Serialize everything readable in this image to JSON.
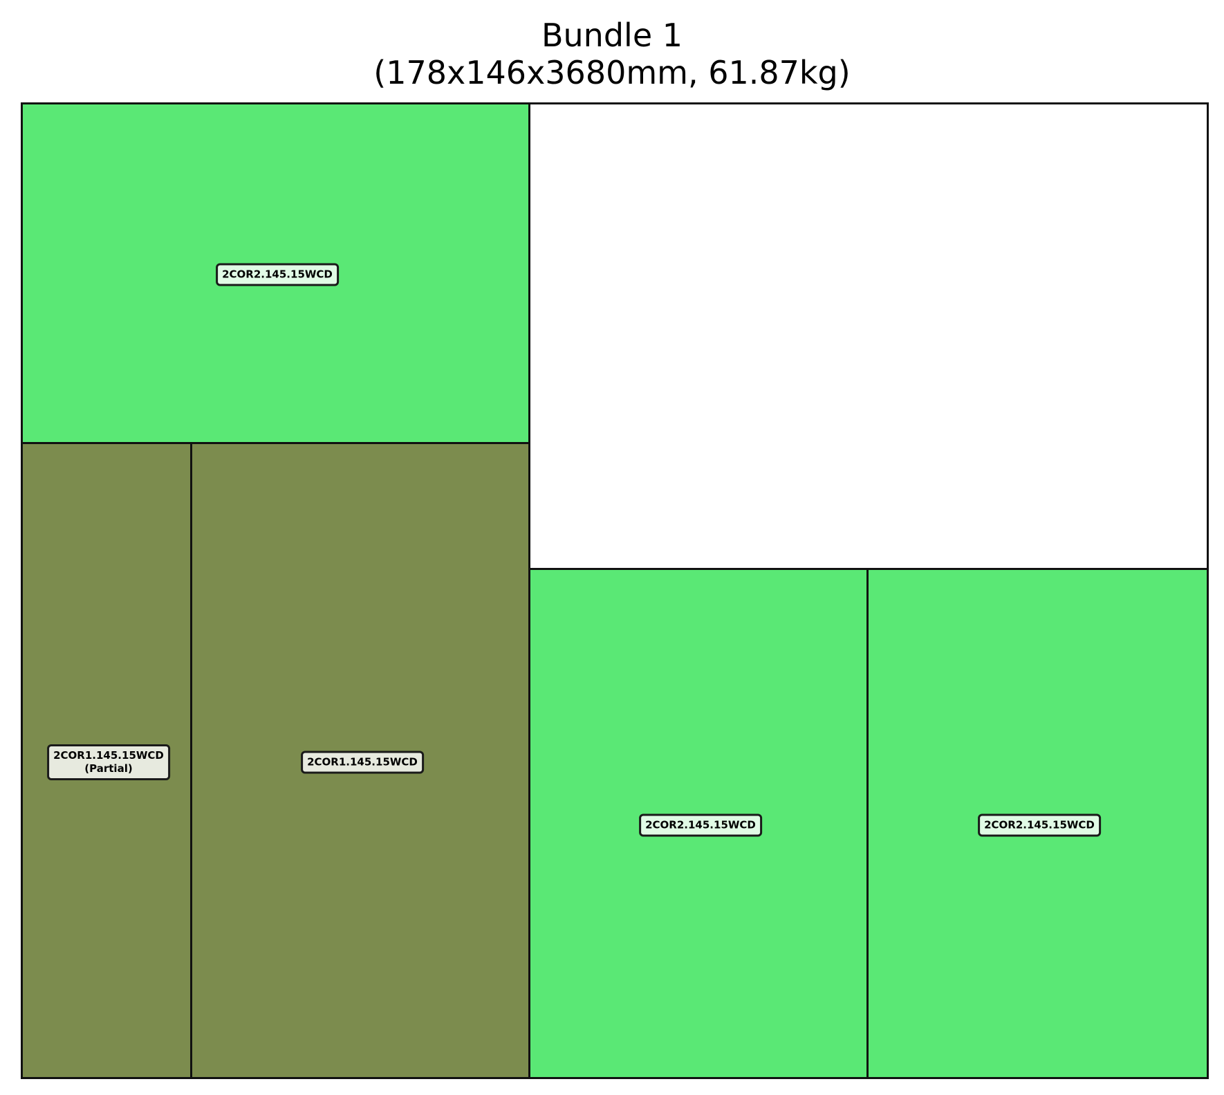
{
  "title": {
    "line1": "Bundle 1",
    "line2": "(178x146x3680mm, 61.87kg)"
  },
  "colors": {
    "light_green": "#5ae875",
    "olive": "#7c8c4e",
    "empty": "#ffffff"
  },
  "pieces": [
    {
      "label": "2COR2.145.15WCD",
      "note": ""
    },
    {
      "label": "2COR1.145.15WCD",
      "note": "(Partial)"
    },
    {
      "label": "2COR1.145.15WCD",
      "note": ""
    },
    {
      "label": "2COR2.145.15WCD",
      "note": ""
    },
    {
      "label": "2COR2.145.15WCD",
      "note": ""
    }
  ]
}
